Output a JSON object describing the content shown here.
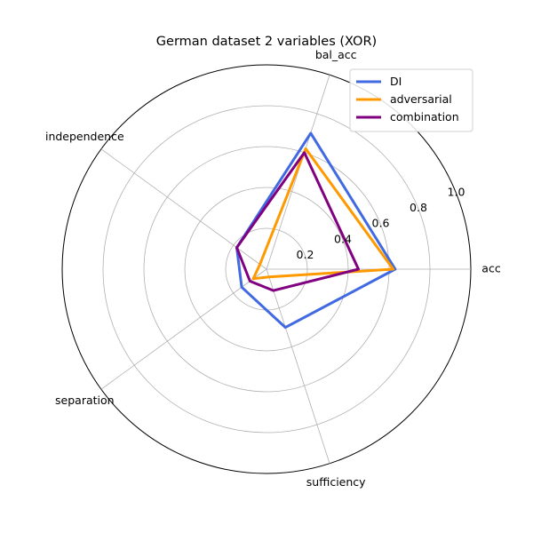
{
  "chart_data": {
    "type": "radar",
    "title": "German dataset 2 variables (XOR)",
    "axes": [
      "acc",
      "bal_acc",
      "independence",
      "separation",
      "sufficiency"
    ],
    "rlim": [
      0,
      1.0
    ],
    "rticks": [
      0.2,
      0.4,
      0.6,
      0.8,
      1.0
    ],
    "rtick_labels": [
      "0.2",
      "0.4",
      "0.6",
      "0.8",
      "1.0"
    ],
    "grid": true,
    "legend_position": "top-right",
    "series": [
      {
        "name": "DI",
        "color": "#4169e1",
        "values": [
          0.63,
          0.7,
          0.18,
          0.15,
          0.3
        ]
      },
      {
        "name": "adversarial",
        "color": "#ff9900",
        "values": [
          0.62,
          0.62,
          0.04,
          0.08,
          0.04
        ]
      },
      {
        "name": "combination",
        "color": "#800080",
        "values": [
          0.45,
          0.6,
          0.18,
          0.1,
          0.11
        ]
      }
    ]
  }
}
